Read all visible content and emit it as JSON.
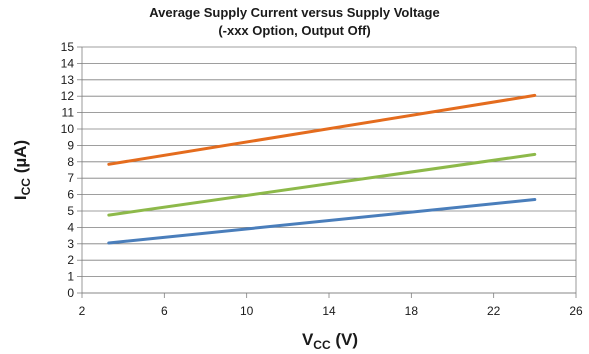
{
  "chart_data": {
    "type": "line",
    "title": "Average Supply Current versus Supply Voltage",
    "subtitle": "(-xxx Option, Output Off)",
    "xlabel": {
      "main": "V",
      "sub": "CC",
      "unit": " (V)"
    },
    "ylabel": {
      "main": "I",
      "sub": "CC",
      "unit": " (µA)"
    },
    "xlim": [
      2,
      26
    ],
    "ylim": [
      0,
      15
    ],
    "x_ticks": [
      2,
      6,
      10,
      14,
      18,
      22,
      26
    ],
    "y_ticks": [
      0,
      1,
      2,
      3,
      4,
      5,
      6,
      7,
      8,
      9,
      10,
      11,
      12,
      13,
      14,
      15
    ],
    "grid": true,
    "series": [
      {
        "color": "#E46C1E",
        "x": [
          3.3,
          24
        ],
        "y": [
          7.85,
          12.05
        ]
      },
      {
        "color": "#8DB94A",
        "x": [
          3.3,
          24
        ],
        "y": [
          4.75,
          8.45
        ]
      },
      {
        "color": "#4A7EBB",
        "x": [
          3.3,
          24
        ],
        "y": [
          3.05,
          5.7
        ]
      }
    ]
  }
}
